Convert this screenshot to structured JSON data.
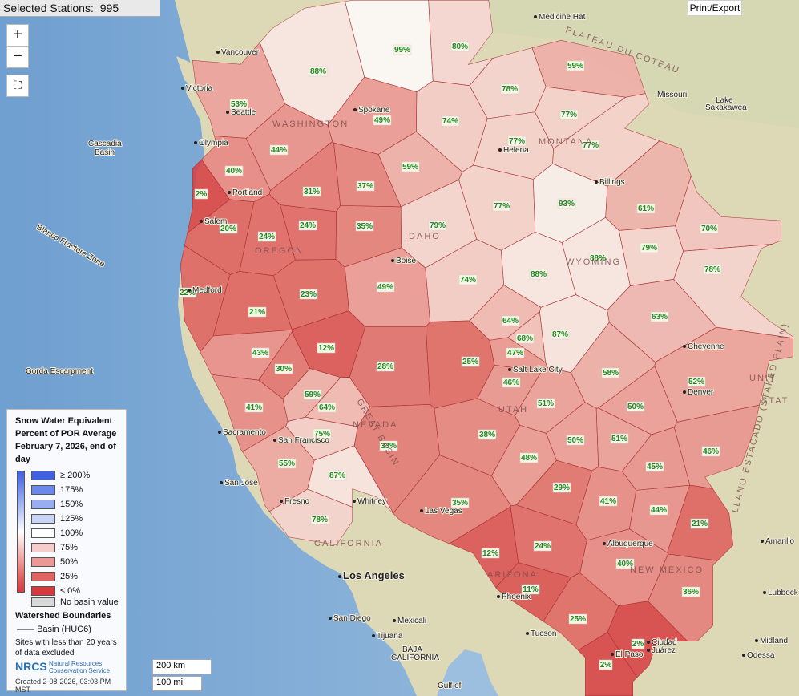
{
  "header": {
    "title": "Selected Stations:",
    "count": 995
  },
  "print_button": "Print/Export",
  "zoom": {
    "in": "+",
    "out": "−"
  },
  "legend": {
    "title": "Snow Water Equivalent Percent of POR Average February 7, 2026, end of day",
    "items": [
      {
        "label": "≥ 200%",
        "value": 200,
        "color": "#4060e0"
      },
      {
        "label": "175%",
        "value": 175,
        "color": "#6c88ea"
      },
      {
        "label": "150%",
        "value": 150,
        "color": "#98aef0"
      },
      {
        "label": "125%",
        "value": 125,
        "color": "#c9d5f6"
      },
      {
        "label": "100%",
        "value": 100,
        "color": "#ffffff"
      },
      {
        "label": "75%",
        "value": 75,
        "color": "#f6cdca"
      },
      {
        "label": "50%",
        "value": 50,
        "color": "#ec9995"
      },
      {
        "label": "25%",
        "value": 25,
        "color": "#e06462"
      },
      {
        "label": "≤ 0%",
        "value": 0,
        "color": "#d63a3f"
      }
    ],
    "no_value": {
      "label": "No basin value",
      "color": "#d9d9d9"
    },
    "boundaries_title": "Watershed Boundaries",
    "boundary": "Basin (HUC6)",
    "note": "Sites with less than 20 years of data excluded",
    "agency_abbr": "NRCS",
    "agency": "Natural Resources Conservation Service",
    "created": "Created 2-08-2026, 03:03 PM MST"
  },
  "scale": {
    "km": "200 km",
    "mi": "100 mi"
  },
  "basins": [
    {
      "value": 53,
      "label": "53%"
    },
    {
      "value": 88,
      "label": "88%"
    },
    {
      "value": 99,
      "label": "99%"
    },
    {
      "value": 80,
      "label": "80%"
    },
    {
      "value": 59,
      "label": "59%"
    },
    {
      "value": 78,
      "label": "78%"
    },
    {
      "value": 74,
      "label": "74%"
    },
    {
      "value": 77,
      "label": "77%"
    },
    {
      "value": 77,
      "label": "77%"
    },
    {
      "value": 77,
      "label": "77%"
    },
    {
      "value": 49,
      "label": "49%"
    },
    {
      "value": 44,
      "label": "44%"
    },
    {
      "value": 40,
      "label": "40%"
    },
    {
      "value": 2,
      "label": "2%"
    },
    {
      "value": 31,
      "label": "31%"
    },
    {
      "value": 37,
      "label": "37%"
    },
    {
      "value": 59,
      "label": "59%"
    },
    {
      "value": 20,
      "label": "20%"
    },
    {
      "value": 24,
      "label": "24%"
    },
    {
      "value": 24,
      "label": "24%"
    },
    {
      "value": 35,
      "label": "35%"
    },
    {
      "value": 79,
      "label": "79%"
    },
    {
      "value": 77,
      "label": "77%"
    },
    {
      "value": 93,
      "label": "93%"
    },
    {
      "value": 61,
      "label": "61%"
    },
    {
      "value": 70,
      "label": "70%"
    },
    {
      "value": 79,
      "label": "79%"
    },
    {
      "value": 88,
      "label": "88%"
    },
    {
      "value": 78,
      "label": "78%"
    },
    {
      "value": 49,
      "label": "49%"
    },
    {
      "value": 74,
      "label": "74%"
    },
    {
      "value": 88,
      "label": "88%"
    },
    {
      "value": 22,
      "label": "22%"
    },
    {
      "value": 21,
      "label": "21%"
    },
    {
      "value": 23,
      "label": "23%"
    },
    {
      "value": 63,
      "label": "63%"
    },
    {
      "value": 64,
      "label": "64%"
    },
    {
      "value": 68,
      "label": "68%"
    },
    {
      "value": 47,
      "label": "47%"
    },
    {
      "value": 87,
      "label": "87%"
    },
    {
      "value": 43,
      "label": "43%"
    },
    {
      "value": 12,
      "label": "12%"
    },
    {
      "value": 30,
      "label": "30%"
    },
    {
      "value": 28,
      "label": "28%"
    },
    {
      "value": 25,
      "label": "25%"
    },
    {
      "value": 46,
      "label": "46%"
    },
    {
      "value": 58,
      "label": "58%"
    },
    {
      "value": 52,
      "label": "52%"
    },
    {
      "value": 59,
      "label": "59%"
    },
    {
      "value": 64,
      "label": "64%"
    },
    {
      "value": 41,
      "label": "41%"
    },
    {
      "value": 51,
      "label": "51%"
    },
    {
      "value": 50,
      "label": "50%"
    },
    {
      "value": 75,
      "label": "75%"
    },
    {
      "value": 38,
      "label": "38%"
    },
    {
      "value": 33,
      "label": "33%"
    },
    {
      "value": 50,
      "label": "50%"
    },
    {
      "value": 51,
      "label": "51%"
    },
    {
      "value": 46,
      "label": "46%"
    },
    {
      "value": 55,
      "label": "55%"
    },
    {
      "value": 48,
      "label": "48%"
    },
    {
      "value": 87,
      "label": "87%"
    },
    {
      "value": 45,
      "label": "45%"
    },
    {
      "value": 29,
      "label": "29%"
    },
    {
      "value": 35,
      "label": "35%"
    },
    {
      "value": 41,
      "label": "41%"
    },
    {
      "value": 44,
      "label": "44%"
    },
    {
      "value": 21,
      "label": "21%"
    },
    {
      "value": 78,
      "label": "78%"
    },
    {
      "value": 12,
      "label": "12%"
    },
    {
      "value": 24,
      "label": "24%"
    },
    {
      "value": 40,
      "label": "40%"
    },
    {
      "value": 11,
      "label": "11%"
    },
    {
      "value": 36,
      "label": "36%"
    },
    {
      "value": 25,
      "label": "25%"
    },
    {
      "value": 2,
      "label": "2%"
    },
    {
      "value": 2,
      "label": "2%"
    }
  ],
  "places": [
    "Medicine Hat",
    "Vancouver",
    "Victoria",
    "Seattle",
    "Olympia",
    "Cascadia",
    "Basin",
    "Portland",
    "Salem",
    "Medford",
    "Spokane",
    "Helena",
    "Billings",
    "Boise",
    "Salt Lake City",
    "Cheyenne",
    "Denver",
    "Sacramento",
    "San Francisco",
    "San Jose",
    "Fresno",
    "Las Vegas",
    "Los Angeles",
    "San Diego",
    "Tijuana",
    "Mexicali",
    "Phoenix",
    "Tucson",
    "Albuquerque",
    "El Paso",
    "Ciudad",
    "Juárez",
    "Amarillo",
    "Lubbock",
    "Midland",
    "Odessa",
    "Lake",
    "Sakakawea",
    "Missouri",
    "Whitney",
    "Gorda Escarpment",
    "Blanco Fracture Zone",
    "Gulf of",
    "BAJA",
    "CALIFORNIA"
  ],
  "regions": [
    "WASHINGTON",
    "OREGON",
    "IDAHO",
    "MONTANA",
    "WYOMING",
    "NEVADA",
    "UTAH",
    "ARIZONA",
    "NEW MEXICO",
    "CALIFORNIA",
    "UNIT",
    "STAT",
    "PLATEAU DU COTEAU",
    "LLANO ESTACADO (STAKED PLAIN)",
    "GREAT BASIN"
  ]
}
